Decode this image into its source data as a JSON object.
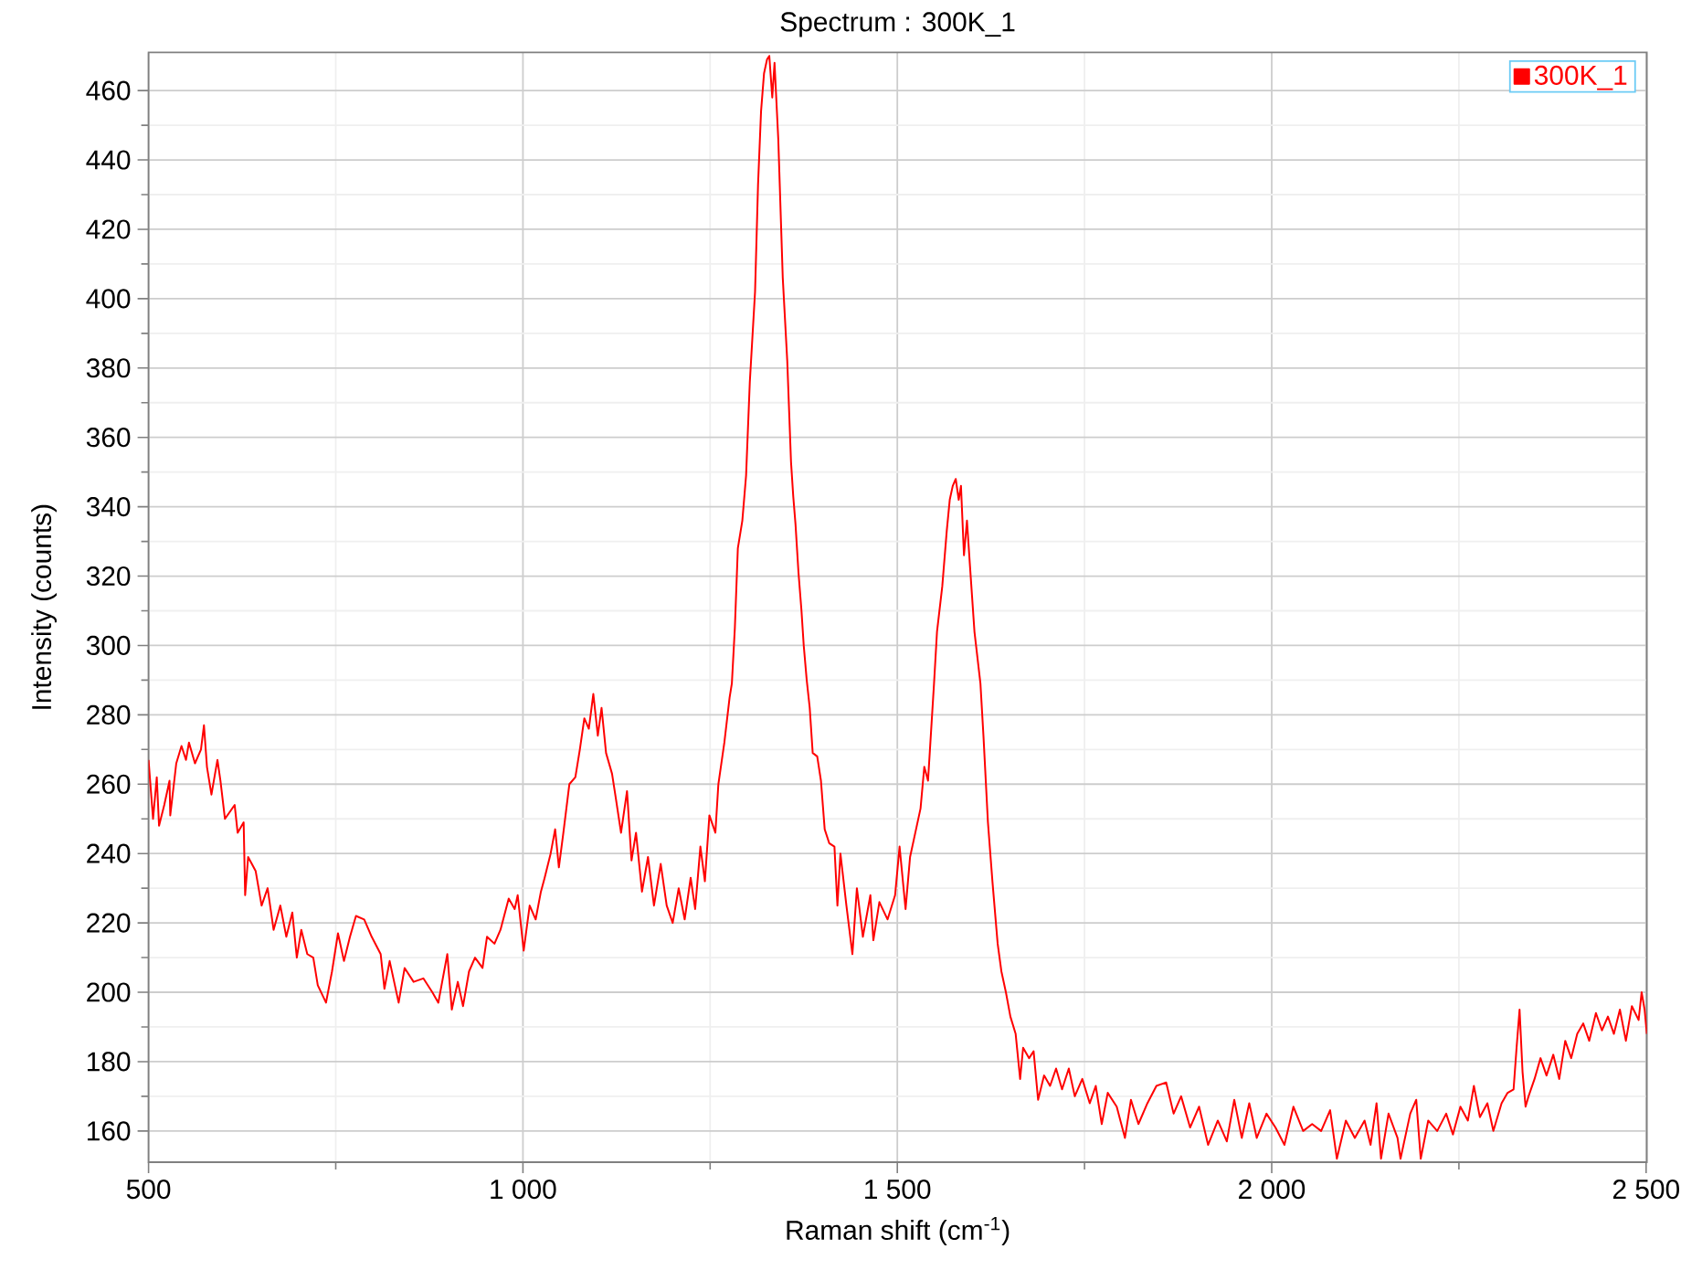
{
  "chart_data": {
    "type": "line",
    "title": "Spectrum : 300K_1",
    "xlabel": "Raman shift (cm$^{-1}$)",
    "ylabel": "Intensity (counts)",
    "x": [
      500,
      506,
      511,
      514,
      521,
      528,
      529,
      537,
      544,
      550,
      554,
      562,
      570,
      574,
      578,
      584,
      592,
      596,
      602,
      615,
      619,
      627,
      629,
      633,
      643,
      651,
      659,
      667,
      676,
      684,
      692,
      698,
      704,
      712,
      720,
      726,
      737,
      745,
      753,
      761,
      769,
      777,
      788,
      798,
      810,
      815,
      822,
      834,
      842,
      854,
      867,
      879,
      887,
      899,
      905,
      913,
      920,
      928,
      936,
      946,
      952,
      962,
      970,
      981,
      989,
      993,
      1001,
      1009,
      1017,
      1024,
      1029,
      1037,
      1043,
      1048,
      1054,
      1062,
      1070,
      1076,
      1082,
      1088,
      1094,
      1100,
      1105,
      1111,
      1119,
      1124,
      1131,
      1139,
      1145,
      1151,
      1159,
      1167,
      1175,
      1184,
      1192,
      1200,
      1208,
      1216,
      1224,
      1230,
      1237,
      1243,
      1249,
      1257,
      1261,
      1269,
      1276,
      1279,
      1283,
      1287,
      1293,
      1298,
      1303,
      1310,
      1314,
      1318,
      1322,
      1326,
      1329,
      1333,
      1336,
      1341,
      1347,
      1353,
      1358,
      1361,
      1364,
      1368,
      1372,
      1375,
      1379,
      1383,
      1387,
      1393,
      1398,
      1403,
      1409,
      1416,
      1420,
      1424,
      1432,
      1440,
      1446,
      1454,
      1464,
      1468,
      1476,
      1487,
      1497,
      1503,
      1511,
      1517,
      1525,
      1531,
      1536,
      1541,
      1545,
      1549,
      1553,
      1560,
      1566,
      1570,
      1574,
      1578,
      1582,
      1585,
      1589,
      1593,
      1597,
      1603,
      1611,
      1615,
      1621,
      1627,
      1634,
      1639,
      1645,
      1651,
      1658,
      1664,
      1668,
      1676,
      1682,
      1688,
      1696,
      1704,
      1712,
      1720,
      1729,
      1737,
      1747,
      1757,
      1765,
      1773,
      1781,
      1793,
      1804,
      1812,
      1822,
      1834,
      1846,
      1859,
      1869,
      1879,
      1891,
      1903,
      1915,
      1928,
      1940,
      1950,
      1960,
      1970,
      1980,
      1993,
      2005,
      2017,
      2029,
      2042,
      2054,
      2066,
      2078,
      2087,
      2099,
      2111,
      2124,
      2132,
      2140,
      2146,
      2156,
      2168,
      2172,
      2185,
      2193,
      2199,
      2209,
      2221,
      2233,
      2242,
      2252,
      2262,
      2270,
      2278,
      2288,
      2296,
      2307,
      2315,
      2323,
      2327,
      2331,
      2335,
      2339,
      2343,
      2351,
      2359,
      2367,
      2376,
      2384,
      2392,
      2400,
      2408,
      2416,
      2424,
      2433,
      2441,
      2449,
      2457,
      2465,
      2473,
      2481,
      2490,
      2494,
      2498,
      2501
    ],
    "series": [
      {
        "name": "300K_1",
        "color": "#ff0000",
        "values": [
          267,
          250,
          262,
          248,
          254,
          261,
          251,
          266,
          271,
          267,
          272,
          266,
          270,
          277,
          265,
          257,
          267,
          261,
          250,
          254,
          246,
          249,
          228,
          239,
          235,
          225,
          230,
          218,
          225,
          216,
          223,
          210,
          218,
          211,
          210,
          202,
          197,
          206,
          217,
          209,
          216,
          222,
          221,
          216,
          211,
          201,
          209,
          197,
          207,
          203,
          204,
          200,
          197,
          211,
          195,
          203,
          196,
          206,
          210,
          207,
          216,
          214,
          218,
          227,
          224,
          228,
          212,
          225,
          221,
          229,
          233,
          240,
          247,
          236,
          246,
          260,
          262,
          270,
          279,
          276,
          286,
          274,
          282,
          269,
          263,
          256,
          246,
          258,
          238,
          246,
          229,
          239,
          225,
          237,
          225,
          220,
          230,
          221,
          233,
          224,
          242,
          232,
          251,
          246,
          260,
          272,
          285,
          289,
          305,
          328,
          336,
          349,
          376,
          402,
          433,
          454,
          465,
          469,
          470,
          458,
          468,
          446,
          406,
          382,
          353,
          343,
          335,
          321,
          310,
          300,
          290,
          282,
          269,
          268,
          261,
          247,
          243,
          242,
          225,
          240,
          225,
          211,
          230,
          216,
          228,
          215,
          226,
          221,
          228,
          242,
          224,
          239,
          247,
          253,
          265,
          261,
          275,
          289,
          304,
          317,
          333,
          342,
          346,
          348,
          342,
          346,
          326,
          336,
          323,
          304,
          289,
          274,
          249,
          232,
          214,
          206,
          200,
          193,
          188,
          175,
          184,
          181,
          183,
          169,
          176,
          173,
          178,
          172,
          178,
          170,
          175,
          168,
          173,
          162,
          171,
          167,
          158,
          169,
          162,
          168,
          173,
          174,
          165,
          170,
          161,
          167,
          156,
          163,
          157,
          169,
          158,
          168,
          158,
          165,
          161,
          156,
          167,
          160,
          162,
          160,
          166,
          152,
          163,
          158,
          163,
          156,
          168,
          152,
          165,
          158,
          152,
          165,
          169,
          152,
          163,
          160,
          165,
          159,
          167,
          163,
          173,
          164,
          168,
          160,
          168,
          171,
          172,
          184,
          195,
          177,
          167,
          170,
          175,
          181,
          176,
          182,
          175,
          186,
          181,
          188,
          191,
          186,
          194,
          189,
          193,
          188,
          195,
          186,
          196,
          192,
          200,
          195,
          188
        ]
      }
    ],
    "xlim": [
      500,
      2501
    ],
    "ylim": [
      151,
      471
    ],
    "xticks": [
      500,
      {
        "value": 1000,
        "label": "1 000"
      },
      {
        "value": 1500,
        "label": "1 500"
      },
      {
        "value": 2000,
        "label": "2 000"
      },
      {
        "value": 2500,
        "label": "2 500"
      }
    ],
    "yticks": [
      160,
      180,
      200,
      220,
      240,
      260,
      280,
      300,
      320,
      340,
      360,
      380,
      400,
      420,
      440,
      460
    ],
    "grid": true,
    "legend": "top right"
  }
}
